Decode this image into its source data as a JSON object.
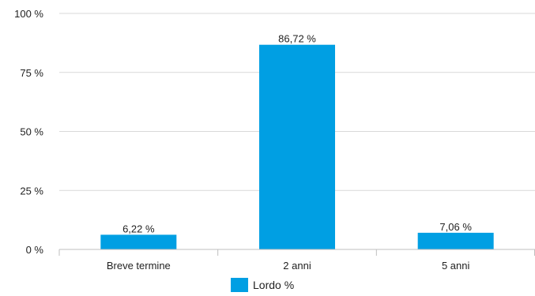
{
  "chart_data": {
    "type": "bar",
    "categories": [
      "Breve termine",
      "2 anni",
      "5 anni"
    ],
    "series": [
      {
        "name": "Lordo %",
        "values": [
          6.22,
          86.72,
          7.06
        ],
        "color": "#009fe3"
      }
    ],
    "data_labels": [
      "6,22 %",
      "86,72 %",
      "7,06 %"
    ],
    "y_ticks": [
      0,
      25,
      50,
      75,
      100
    ],
    "y_tick_labels": [
      "0 %",
      "25 %",
      "50 %",
      "75 %",
      "100 %"
    ],
    "ylim": [
      0,
      100
    ],
    "grid": true,
    "grid_color": "#d9d9d9",
    "legend_position": "bottom"
  }
}
